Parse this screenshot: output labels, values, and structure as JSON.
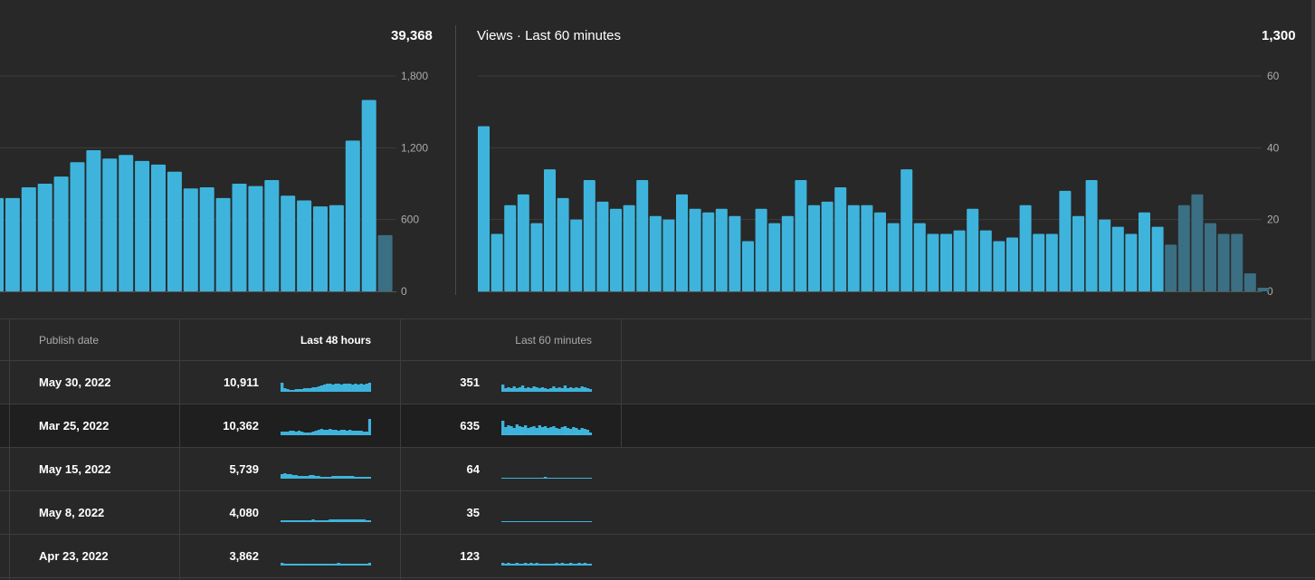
{
  "panel_48": {
    "total": "39,368",
    "y_ticks": [
      "1,800",
      "1,200",
      "600",
      "0"
    ]
  },
  "panel_60": {
    "title": "Views · Last 60 minutes",
    "total": "1,300",
    "y_ticks": [
      "60",
      "40",
      "20",
      "0"
    ]
  },
  "table": {
    "headers": {
      "publish_date": "Publish date",
      "last_48": "Last 48 hours",
      "last_60": "Last 60 minutes"
    },
    "rows": [
      {
        "date": "May 30, 2022",
        "views_48": "10,911",
        "views_60": "351"
      },
      {
        "date": "Mar 25, 2022",
        "views_48": "10,362",
        "views_60": "635"
      },
      {
        "date": "May 15, 2022",
        "views_48": "5,739",
        "views_60": "64"
      },
      {
        "date": "May 8, 2022",
        "views_48": "4,080",
        "views_60": "35"
      },
      {
        "date": "Apr 23, 2022",
        "views_48": "3,862",
        "views_60": "123"
      }
    ]
  },
  "colors": {
    "bar": "#3eb4dc",
    "bar_partial": "#3b6f83",
    "background": "#282828",
    "grid": "#3d3d3d",
    "highlight_row": "#1f1f1f"
  },
  "chart_data": [
    {
      "type": "bar",
      "title": "",
      "ylim": [
        0,
        1800
      ],
      "y_ticks": [
        0,
        600,
        1200,
        1800
      ],
      "values": [
        780,
        780,
        870,
        900,
        960,
        1080,
        1180,
        1110,
        1140,
        1090,
        1060,
        1000,
        860,
        870,
        780,
        900,
        880,
        930,
        800,
        760,
        710,
        720,
        1260,
        1600,
        470
      ],
      "partial_last": true
    },
    {
      "type": "bar",
      "title": "Views · Last 60 minutes",
      "ylim": [
        0,
        60
      ],
      "y_ticks": [
        0,
        20,
        40,
        60
      ],
      "values": [
        46,
        16,
        24,
        27,
        19,
        34,
        26,
        20,
        31,
        25,
        23,
        24,
        31,
        21,
        20,
        27,
        23,
        22,
        23,
        21,
        14,
        23,
        19,
        21,
        31,
        24,
        25,
        29,
        24,
        24,
        22,
        19,
        34,
        19,
        16,
        16,
        17,
        23,
        17,
        14,
        15,
        24,
        16,
        16,
        28,
        21,
        31,
        20,
        18,
        16,
        22,
        18,
        13,
        24,
        27,
        19,
        16,
        16,
        5,
        1
      ],
      "partial_from_index": 52
    }
  ],
  "sparklines": [
    {
      "h48": [
        10,
        4,
        3,
        2,
        2,
        3,
        3,
        3,
        4,
        4,
        4,
        5,
        5,
        6,
        7,
        8,
        9,
        9,
        8,
        9,
        9,
        8,
        9,
        9,
        9,
        8,
        9,
        8,
        9,
        8,
        9,
        10
      ],
      "h60": [
        8,
        4,
        5,
        4,
        6,
        4,
        5,
        7,
        4,
        5,
        4,
        6,
        5,
        4,
        5,
        4,
        3,
        4,
        6,
        4,
        5,
        4,
        7,
        4,
        5,
        4,
        5,
        4,
        6,
        5,
        4,
        3
      ]
    },
    {
      "h48": [
        4,
        4,
        4,
        5,
        5,
        4,
        5,
        4,
        3,
        3,
        3,
        4,
        5,
        6,
        7,
        6,
        6,
        7,
        6,
        6,
        5,
        6,
        6,
        5,
        6,
        5,
        5,
        5,
        5,
        4,
        4,
        18
      ],
      "h60": [
        16,
        9,
        11,
        10,
        8,
        12,
        10,
        9,
        11,
        8,
        9,
        10,
        8,
        11,
        9,
        10,
        8,
        9,
        10,
        8,
        7,
        9,
        10,
        8,
        7,
        9,
        8,
        6,
        8,
        7,
        6,
        3
      ]
    },
    {
      "h48": [
        5,
        6,
        5,
        5,
        4,
        4,
        3,
        3,
        3,
        3,
        4,
        4,
        3,
        3,
        2,
        2,
        2,
        2,
        3,
        3,
        3,
        3,
        3,
        3,
        3,
        3,
        2,
        2,
        2,
        2,
        2,
        2
      ],
      "h60": [
        1,
        0,
        1,
        1,
        0,
        1,
        0,
        1,
        1,
        0,
        0,
        1,
        0,
        0,
        1,
        2,
        0,
        1,
        0,
        1,
        1,
        0,
        1,
        1,
        0,
        0,
        1,
        1,
        0,
        1,
        1,
        1
      ]
    },
    {
      "h48": [
        2,
        2,
        2,
        2,
        2,
        2,
        2,
        2,
        2,
        2,
        2,
        3,
        2,
        2,
        2,
        2,
        2,
        3,
        3,
        3,
        3,
        3,
        3,
        3,
        3,
        3,
        3,
        3,
        3,
        3,
        2,
        2
      ],
      "h60": [
        1,
        1,
        0,
        0,
        1,
        1,
        1,
        0,
        1,
        1,
        1,
        1,
        1,
        1,
        1,
        1,
        1,
        1,
        1,
        1,
        1,
        1,
        1,
        1,
        1,
        1,
        1,
        1,
        1,
        1,
        0,
        1
      ]
    },
    {
      "h48": [
        3,
        2,
        2,
        2,
        2,
        2,
        2,
        2,
        2,
        2,
        2,
        2,
        2,
        2,
        2,
        2,
        2,
        2,
        2,
        2,
        3,
        2,
        2,
        2,
        2,
        2,
        2,
        2,
        2,
        2,
        2,
        3
      ],
      "h60": [
        3,
        2,
        3,
        2,
        2,
        3,
        2,
        2,
        3,
        2,
        3,
        2,
        3,
        2,
        2,
        2,
        2,
        2,
        2,
        3,
        2,
        3,
        2,
        2,
        3,
        2,
        2,
        3,
        2,
        3,
        2,
        2
      ]
    }
  ]
}
